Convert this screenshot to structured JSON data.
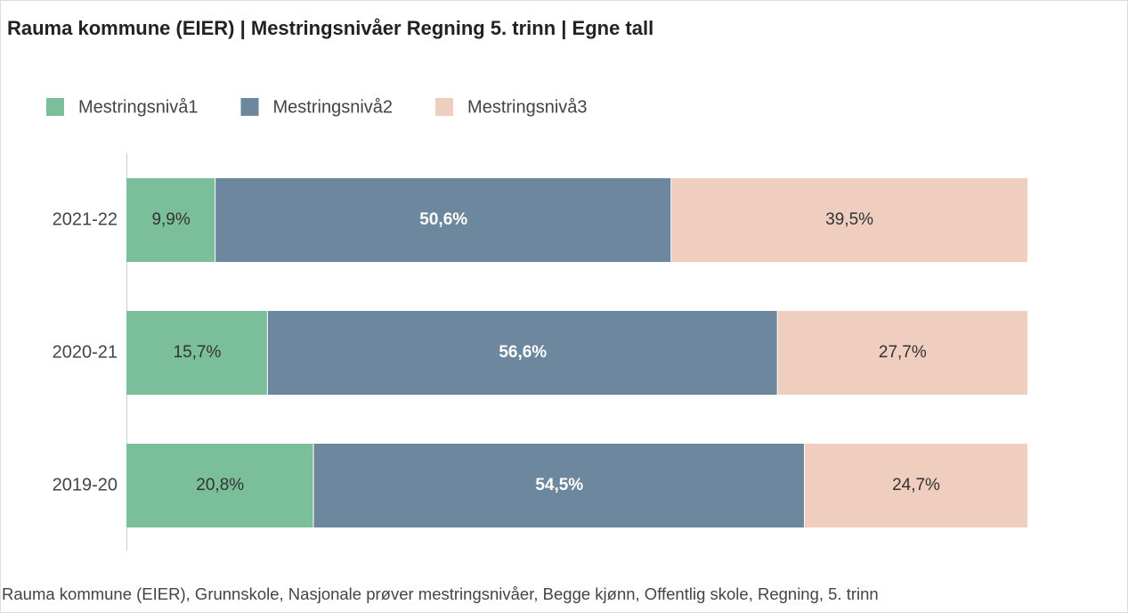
{
  "chart_data": {
    "type": "stacked_barh",
    "title": "Rauma kommune (EIER) | Mestringsnivåer Regning 5. trinn | Egne tall",
    "categories": [
      "2021-22",
      "2020-21",
      "2019-20"
    ],
    "series": [
      {
        "name": "Mestringsnivå1",
        "color": "#7bbf9a",
        "values": [
          9.9,
          15.7,
          20.8
        ],
        "value_labels": [
          "9,9%",
          "15,7%",
          "20,8%"
        ]
      },
      {
        "name": "Mestringsnivå2",
        "color": "#6d889e",
        "values": [
          50.6,
          56.6,
          54.5
        ],
        "value_labels": [
          "50,6%",
          "56,6%",
          "54,5%"
        ]
      },
      {
        "name": "Mestringsnivå3",
        "color": "#efcdbf",
        "values": [
          39.5,
          27.7,
          24.7
        ],
        "value_labels": [
          "39,5%",
          "27,7%",
          "24,7%"
        ]
      }
    ],
    "xlim": [
      0,
      100
    ],
    "legend": "top",
    "caption": "Rauma kommune (EIER), Grunnskole, Nasjonale prøver mestringsnivåer, Begge kjønn, Offentlig skole, Regning, 5. trinn"
  }
}
